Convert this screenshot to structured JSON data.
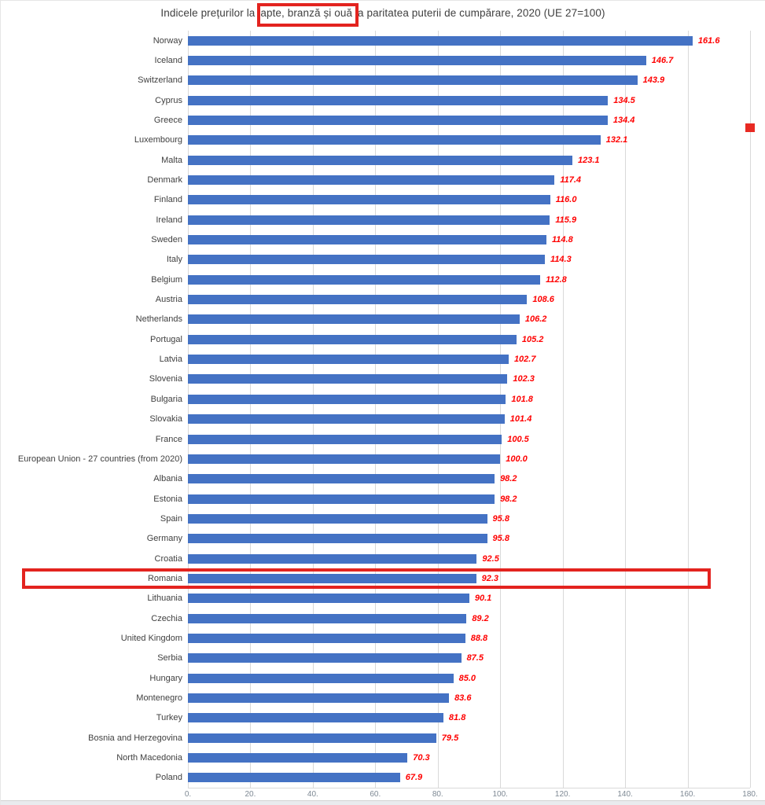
{
  "title": "Indicele prețurilor la lapte, branză și ouă la paritatea puterii de cumpărare, 2020 (UE 27=100)",
  "chart_data": {
    "type": "bar",
    "orientation": "horizontal",
    "title": "Indicele prețurilor la lapte, branză și ouă la paritatea puterii de cumpărare, 2020 (UE 27=100)",
    "categories": [
      "Norway",
      "Iceland",
      "Switzerland",
      "Cyprus",
      "Greece",
      "Luxembourg",
      "Malta",
      "Denmark",
      "Finland",
      "Ireland",
      "Sweden",
      "Italy",
      "Belgium",
      "Austria",
      "Netherlands",
      "Portugal",
      "Latvia",
      "Slovenia",
      "Bulgaria",
      "Slovakia",
      "France",
      "European Union - 27 countries (from 2020)",
      "Albania",
      "Estonia",
      "Spain",
      "Germany",
      "Croatia",
      "Romania",
      "Lithuania",
      "Czechia",
      "United Kingdom",
      "Serbia",
      "Hungary",
      "Montenegro",
      "Turkey",
      "Bosnia and Herzegovina",
      "North Macedonia",
      "Poland"
    ],
    "values": [
      161.6,
      146.7,
      143.9,
      134.5,
      134.4,
      132.1,
      123.1,
      117.4,
      116.0,
      115.9,
      114.8,
      114.3,
      112.8,
      108.6,
      106.2,
      105.2,
      102.7,
      102.3,
      101.8,
      101.4,
      100.5,
      100.0,
      98.2,
      98.2,
      95.8,
      95.8,
      92.5,
      92.3,
      90.1,
      89.2,
      88.8,
      87.5,
      85.0,
      83.6,
      81.8,
      79.5,
      70.3,
      67.9
    ],
    "value_labels": [
      "161.6",
      "146.7",
      "143.9",
      "134.5",
      "134.4",
      "132.1",
      "123.1",
      "117.4",
      "116.0",
      "115.9",
      "114.8",
      "114.3",
      "112.8",
      "108.6",
      "106.2",
      "105.2",
      "102.7",
      "102.3",
      "101.8",
      "101.4",
      "100.5",
      "100.0",
      "98.2",
      "98.2",
      "95.8",
      "95.8",
      "92.5",
      "92.3",
      "90.1",
      "89.2",
      "88.8",
      "87.5",
      "85.0",
      "83.6",
      "81.8",
      "79.5",
      "70.3",
      "67.9"
    ],
    "xlabel": "",
    "ylabel": "",
    "xlim": [
      0,
      180
    ],
    "x_tick_values": [
      0,
      20,
      40,
      60,
      80,
      100,
      120,
      140,
      160,
      180
    ],
    "x_tick_labels": [
      "0.",
      "20.",
      "40.",
      "60.",
      "80.",
      "100.",
      "120.",
      "140.",
      "160.",
      "180."
    ],
    "grid": true,
    "legend": false,
    "bar_color": "#4472c4",
    "value_label_color": "#ff0000",
    "gridline_color": "#d9d9d9"
  },
  "annotations": {
    "title_highlighted_text": "lapte, branză și ouă",
    "highlighted_category": "Romania",
    "highlight_color": "#e3231f",
    "marker_color": "#e82a23"
  }
}
